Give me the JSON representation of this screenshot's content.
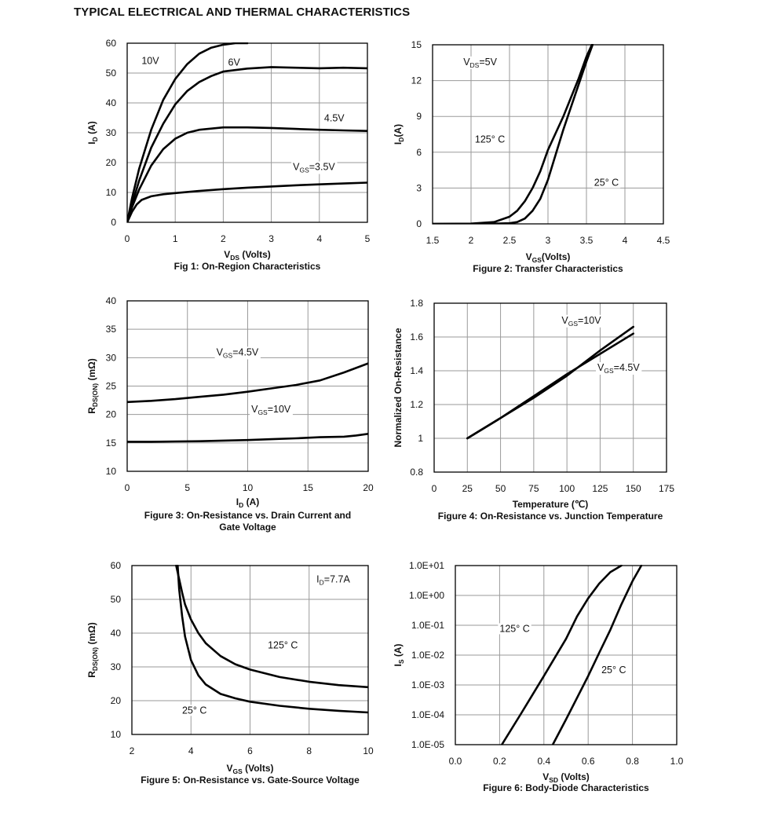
{
  "page": {
    "title": "TYPICAL ELECTRICAL AND THERMAL CHARACTERISTICS"
  },
  "chart_data": [
    {
      "id": "fig1",
      "type": "line",
      "title": "Fig 1: On-Region Characteristics",
      "xlabel": "V",
      "xlabel_sub": "DS",
      "xlabel_rest": " (Volts)",
      "ylabel": "I",
      "ylabel_sub": "D",
      "ylabel_rest": " (A)",
      "xlim": [
        0,
        5
      ],
      "ylim": [
        0,
        60
      ],
      "xticks": [
        0,
        1,
        2,
        3,
        4,
        5
      ],
      "xtick_labels": [
        "0",
        "1",
        "2",
        "3",
        "4",
        "5"
      ],
      "yticks": [
        0,
        10,
        20,
        30,
        40,
        50,
        60
      ],
      "ytick_labels": [
        "0",
        "10",
        "20",
        "30",
        "40",
        "50",
        "60"
      ],
      "grid": true,
      "series": [
        {
          "name": "10V",
          "x": [
            0,
            0.1,
            0.25,
            0.5,
            0.75,
            1.0,
            1.25,
            1.5,
            1.75,
            2.0,
            2.25,
            2.5
          ],
          "y": [
            0,
            8,
            18,
            31,
            41,
            48,
            53,
            56.5,
            58.5,
            59.5,
            60,
            60
          ]
        },
        {
          "name": "6V",
          "x": [
            0,
            0.1,
            0.25,
            0.5,
            0.75,
            1.0,
            1.25,
            1.5,
            1.75,
            2.0,
            2.5,
            3.0,
            3.5,
            4.0,
            4.5,
            5.0
          ],
          "y": [
            0,
            6,
            14,
            25,
            33,
            39.5,
            44,
            47,
            49,
            50.5,
            51.5,
            52,
            51.8,
            51.6,
            51.8,
            51.6
          ]
        },
        {
          "name": "4.5V",
          "x": [
            0,
            0.1,
            0.25,
            0.5,
            0.75,
            1.0,
            1.25,
            1.5,
            2.0,
            2.5,
            3.0,
            3.5,
            4.0,
            4.5,
            5.0
          ],
          "y": [
            0,
            5,
            11,
            19,
            24.5,
            28,
            30,
            31,
            31.8,
            31.8,
            31.6,
            31.3,
            31,
            30.8,
            30.6
          ]
        },
        {
          "name": "VGS=3.5V",
          "x": [
            0,
            0.1,
            0.2,
            0.3,
            0.5,
            0.75,
            1.0,
            1.5,
            2.0,
            2.5,
            3.0,
            3.5,
            4.0,
            4.5,
            5.0
          ],
          "y": [
            0,
            3.5,
            6,
            7.5,
            8.7,
            9.4,
            9.8,
            10.5,
            11.1,
            11.6,
            12,
            12.4,
            12.7,
            13,
            13.3
          ]
        }
      ],
      "annotations": [
        {
          "text": "10V",
          "x": 0.3,
          "y": 53
        },
        {
          "text": "6V",
          "x": 2.1,
          "y": 52.5
        },
        {
          "text": "4.5V",
          "x": 4.1,
          "y": 33.8
        },
        {
          "text": "V",
          "sub": "GS",
          "rest": "=3.5V",
          "x": 3.45,
          "y": 17.5
        }
      ]
    },
    {
      "id": "fig2",
      "type": "line",
      "title": "Figure 2: Transfer Characteristics",
      "xlabel": "V",
      "xlabel_sub": "GS",
      "xlabel_rest": "(Volts)",
      "ylabel": "I",
      "ylabel_sub": "D",
      "ylabel_rest": "(A)",
      "xlim": [
        1.5,
        4.5
      ],
      "ylim": [
        0,
        15
      ],
      "xticks": [
        1.5,
        2,
        2.5,
        3,
        3.5,
        4,
        4.5
      ],
      "xtick_labels": [
        "1.5",
        "2",
        "2.5",
        "3",
        "3.5",
        "4",
        "4.5"
      ],
      "yticks": [
        0,
        3,
        6,
        9,
        12,
        15
      ],
      "ytick_labels": [
        "0",
        "3",
        "6",
        "9",
        "12",
        "15"
      ],
      "grid": true,
      "series": [
        {
          "name": "125° C",
          "x": [
            1.5,
            2.0,
            2.3,
            2.5,
            2.6,
            2.7,
            2.8,
            2.9,
            3.0,
            3.1,
            3.2,
            3.3,
            3.4,
            3.5,
            3.57
          ],
          "y": [
            0,
            0.02,
            0.15,
            0.6,
            1.1,
            1.9,
            3.0,
            4.4,
            6.2,
            7.6,
            9.0,
            10.6,
            12.2,
            14.0,
            15
          ]
        },
        {
          "name": "25° C",
          "x": [
            1.5,
            2.3,
            2.5,
            2.6,
            2.7,
            2.8,
            2.9,
            3.0,
            3.1,
            3.2,
            3.3,
            3.4,
            3.5,
            3.58
          ],
          "y": [
            0,
            0.02,
            0.05,
            0.15,
            0.45,
            1.1,
            2.1,
            3.7,
            5.8,
            7.9,
            9.8,
            11.7,
            13.6,
            15
          ]
        }
      ],
      "annotations": [
        {
          "text": "V",
          "sub": "DS",
          "rest": "=5V",
          "x": 1.9,
          "y": 13.3
        },
        {
          "text": "125° C",
          "x": 2.05,
          "y": 6.8
        },
        {
          "text": "25° C",
          "x": 3.6,
          "y": 3.2
        }
      ]
    },
    {
      "id": "fig3",
      "type": "line",
      "title": "Figure 3: On-Resistance vs. Drain Current and",
      "title_line2": "Gate Voltage",
      "xlabel": "I",
      "xlabel_sub": "D",
      "xlabel_rest": " (A)",
      "ylabel": "R",
      "ylabel_sub": "DS(ON)",
      "ylabel_rest": " (mΩ)",
      "xlim": [
        0,
        20
      ],
      "ylim": [
        10,
        40
      ],
      "xticks": [
        0,
        5,
        10,
        15,
        20
      ],
      "xtick_labels": [
        "0",
        "5",
        "10",
        "15",
        "20"
      ],
      "yticks": [
        10,
        15,
        20,
        25,
        30,
        35,
        40
      ],
      "ytick_labels": [
        "10",
        "15",
        "20",
        "25",
        "30",
        "35",
        "40"
      ],
      "grid": true,
      "series": [
        {
          "name": "VGS=4.5V",
          "x": [
            0,
            2,
            4,
            6,
            8,
            10,
            12,
            14,
            16,
            18,
            20
          ],
          "y": [
            22.2,
            22.4,
            22.7,
            23.1,
            23.5,
            24.0,
            24.6,
            25.2,
            26.0,
            27.4,
            29.0
          ]
        },
        {
          "name": "VGS=10V",
          "x": [
            0,
            2,
            4,
            6,
            8,
            10,
            12,
            14,
            16,
            18,
            19,
            20
          ],
          "y": [
            15.2,
            15.2,
            15.25,
            15.3,
            15.4,
            15.5,
            15.65,
            15.8,
            16.0,
            16.1,
            16.3,
            16.6
          ]
        }
      ],
      "annotations": [
        {
          "text": "V",
          "sub": "GS",
          "rest": "=4.5V",
          "x": 7.4,
          "y": 30.4
        },
        {
          "text": "V",
          "sub": "GS",
          "rest": "=10V",
          "x": 10.3,
          "y": 20.4
        }
      ]
    },
    {
      "id": "fig4",
      "type": "line",
      "title": "Figure 4: On-Resistance vs. Junction Temperature",
      "xlabel": "Temperature (℃)",
      "ylabel": "Normalized On-Resistance",
      "xlim": [
        0,
        175
      ],
      "ylim": [
        0.8,
        1.8
      ],
      "xticks": [
        0,
        25,
        50,
        75,
        100,
        125,
        150,
        175
      ],
      "xtick_labels": [
        "0",
        "25",
        "50",
        "75",
        "100",
        "125",
        "150",
        "175"
      ],
      "yticks": [
        0.8,
        1.0,
        1.2,
        1.4,
        1.6,
        1.8
      ],
      "ytick_labels": [
        "0.8",
        "1",
        "1.2",
        "1.4",
        "1.6",
        "1.8"
      ],
      "grid": true,
      "series": [
        {
          "name": "VGS=10V",
          "x": [
            25,
            50,
            75,
            100,
            125,
            150
          ],
          "y": [
            1.0,
            1.12,
            1.24,
            1.37,
            1.52,
            1.66
          ]
        },
        {
          "name": "VGS=4.5V",
          "x": [
            25,
            50,
            75,
            100,
            125,
            150
          ],
          "y": [
            1.0,
            1.12,
            1.25,
            1.38,
            1.5,
            1.62
          ]
        }
      ],
      "annotations": [
        {
          "text": "V",
          "sub": "GS",
          "rest": "=10V",
          "x": 96,
          "y": 1.68
        },
        {
          "text": "V",
          "sub": "GS",
          "rest": "=4.5V",
          "x": 123,
          "y": 1.4
        }
      ]
    },
    {
      "id": "fig5",
      "type": "line",
      "title": "Figure 5: On-Resistance vs. Gate-Source Voltage",
      "xlabel": "V",
      "xlabel_sub": "GS",
      "xlabel_rest": " (Volts)",
      "ylabel": "R",
      "ylabel_sub": "DS(ON)",
      "ylabel_rest": " (mΩ)",
      "xlim": [
        2,
        10
      ],
      "ylim": [
        10,
        60
      ],
      "xticks": [
        2,
        4,
        6,
        8,
        10
      ],
      "xtick_labels": [
        "2",
        "4",
        "6",
        "8",
        "10"
      ],
      "yticks": [
        10,
        20,
        30,
        40,
        50,
        60
      ],
      "ytick_labels": [
        "10",
        "20",
        "30",
        "40",
        "50",
        "60"
      ],
      "grid": true,
      "series": [
        {
          "name": "125° C",
          "x": [
            3.5,
            3.6,
            3.7,
            3.8,
            4.0,
            4.25,
            4.5,
            5.0,
            5.5,
            6.0,
            7.0,
            8.0,
            9.0,
            10.0
          ],
          "y": [
            60,
            56,
            52,
            48.5,
            44,
            40,
            37,
            33.2,
            30.8,
            29.2,
            27.0,
            25.6,
            24.6,
            24.0
          ]
        },
        {
          "name": "25° C",
          "x": [
            3.55,
            3.6,
            3.7,
            3.8,
            4.0,
            4.25,
            4.5,
            5.0,
            5.5,
            6.0,
            7.0,
            8.0,
            9.0,
            10.0
          ],
          "y": [
            60,
            53,
            45,
            39,
            32,
            27.5,
            24.8,
            22.0,
            20.7,
            19.7,
            18.5,
            17.6,
            17.0,
            16.5
          ]
        }
      ],
      "annotations": [
        {
          "text": "I",
          "sub": "D",
          "rest": "=7.7A",
          "x": 8.25,
          "y": 55
        },
        {
          "text": "125° C",
          "x": 6.6,
          "y": 35.5
        },
        {
          "text": "25° C",
          "x": 3.7,
          "y": 16.2
        }
      ]
    },
    {
      "id": "fig6",
      "type": "line",
      "title": "Figure 6: Body-Diode Characteristics",
      "xlabel": "V",
      "xlabel_sub": "SD",
      "xlabel_rest": " (Volts)",
      "ylabel": "I",
      "ylabel_sub": "S",
      "ylabel_rest": " (A)",
      "yscale": "log",
      "xlim": [
        0.0,
        1.0
      ],
      "ylim": [
        1e-05,
        10
      ],
      "xticks": [
        0,
        0.2,
        0.4,
        0.6,
        0.8,
        1.0
      ],
      "xtick_labels": [
        "0.0",
        "0.2",
        "0.4",
        "0.6",
        "0.8",
        "1.0"
      ],
      "yticks": [
        1e-05,
        0.0001,
        0.001,
        0.01,
        0.1,
        1,
        10
      ],
      "ytick_labels": [
        "1.0E-05",
        "1.0E-04",
        "1.0E-03",
        "1.0E-02",
        "1.0E-01",
        "1.0E+00",
        "1.0E+01"
      ],
      "grid": true,
      "series": [
        {
          "name": "125° C",
          "x": [
            0.21,
            0.3,
            0.4,
            0.5,
            0.55,
            0.6,
            0.65,
            0.7,
            0.75
          ],
          "y": [
            1e-05,
            0.00012,
            0.002,
            0.035,
            0.2,
            0.8,
            2.5,
            6,
            10
          ]
        },
        {
          "name": "25° C",
          "x": [
            0.44,
            0.5,
            0.6,
            0.65,
            0.7,
            0.75,
            0.8,
            0.84
          ],
          "y": [
            1e-05,
            7e-05,
            0.002,
            0.012,
            0.07,
            0.5,
            3,
            10
          ]
        }
      ],
      "annotations": [
        {
          "text": "125° C",
          "x": 0.2,
          "y": 0.06
        },
        {
          "text": "25° C",
          "x": 0.66,
          "y": 0.0025
        }
      ]
    }
  ],
  "layout_panels": null
}
